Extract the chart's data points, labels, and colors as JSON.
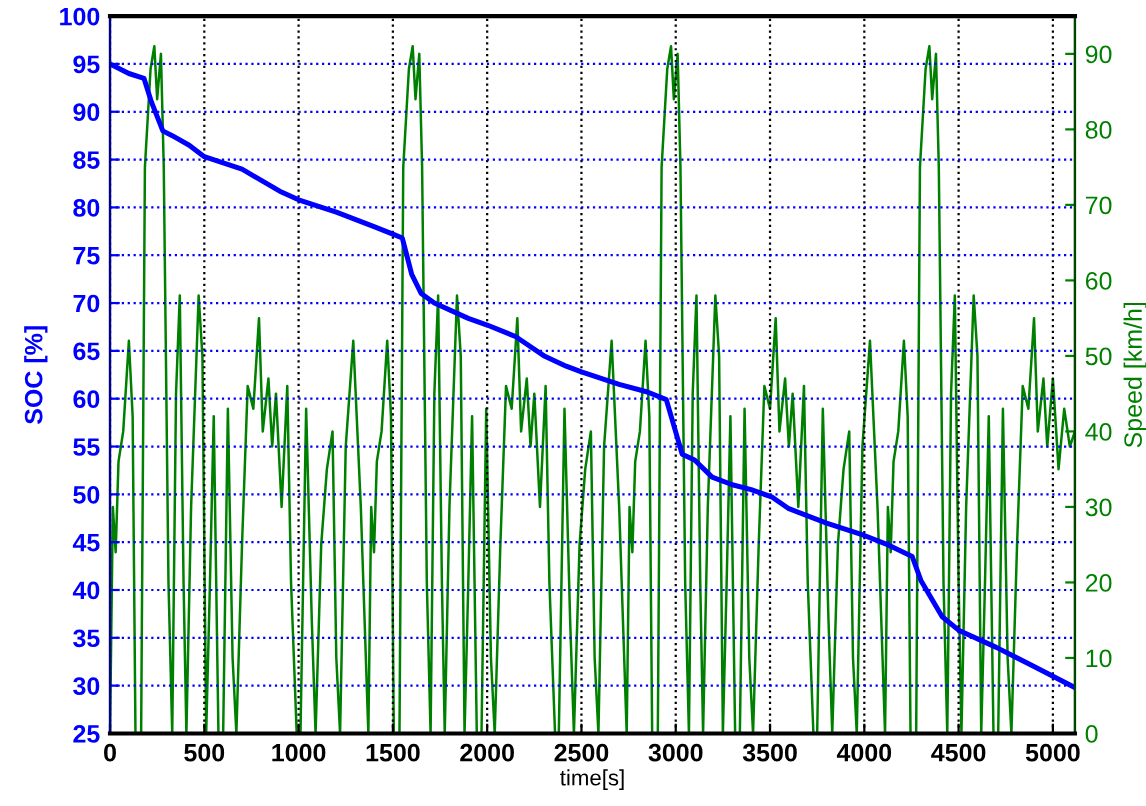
{
  "chart_data": {
    "type": "line",
    "xlabel": "time[s]",
    "ylabel": "SOC [%]",
    "y2label": "Speed [km/h]",
    "xlim": [
      0,
      5117
    ],
    "xticks": [
      0,
      500,
      1000,
      1500,
      2000,
      2500,
      3000,
      3500,
      4000,
      4500,
      5000
    ],
    "ylim": [
      25,
      100
    ],
    "yticks": [
      25,
      30,
      35,
      40,
      45,
      50,
      55,
      60,
      65,
      70,
      75,
      80,
      85,
      90,
      95,
      100
    ],
    "y2lim": [
      0,
      95
    ],
    "y2ticks": [
      0,
      10,
      20,
      30,
      40,
      50,
      60,
      70,
      80,
      90
    ],
    "grid": true,
    "marker": "none",
    "line_style": "solid",
    "series": [
      {
        "axis": "y2",
        "color": "#008000",
        "x": [
          0,
          15,
          30,
          45,
          70,
          100,
          120,
          135,
          165,
          185,
          215,
          235,
          250,
          270,
          285,
          310,
          330,
          350,
          370,
          390,
          405,
          430,
          470,
          490,
          510,
          530,
          550,
          575,
          600,
          625,
          650,
          670,
          700,
          730,
          760,
          790,
          810,
          840,
          860,
          880,
          910,
          940,
          960,
          990,
          1010,
          1040,
          1070,
          1090,
          1120,
          1150,
          1180,
          1200,
          1220,
          1250,
          1290,
          1330,
          1370,
          1385,
          1400,
          1415,
          1440,
          1470,
          1490,
          1505,
          1535,
          1555,
          1585,
          1605,
          1620,
          1640,
          1655,
          1680,
          1700,
          1720,
          1740,
          1760,
          1775,
          1800,
          1840,
          1860,
          1880,
          1900,
          1920,
          1945,
          1970,
          1995,
          2020,
          2040,
          2070,
          2100,
          2130,
          2160,
          2180,
          2210,
          2230,
          2250,
          2280,
          2310,
          2330,
          2360,
          2380,
          2410,
          2440,
          2460,
          2490,
          2520,
          2550,
          2570,
          2590,
          2620,
          2660,
          2700,
          2740,
          2755,
          2770,
          2785,
          2810,
          2840,
          2860,
          2875,
          2905,
          2925,
          2955,
          2975,
          2990,
          3010,
          3025,
          3050,
          3070,
          3090,
          3110,
          3130,
          3145,
          3170,
          3210,
          3230,
          3250,
          3270,
          3290,
          3315,
          3340,
          3365,
          3390,
          3410,
          3440,
          3470,
          3500,
          3530,
          3550,
          3580,
          3600,
          3620,
          3650,
          3680,
          3700,
          3730,
          3750,
          3780,
          3810,
          3830,
          3860,
          3890,
          3920,
          3940,
          3960,
          3990,
          4030,
          4070,
          4110,
          4125,
          4140,
          4155,
          4180,
          4210,
          4230,
          4245,
          4275,
          4295,
          4325,
          4345,
          4360,
          4380,
          4395,
          4420,
          4440,
          4460,
          4480,
          4500,
          4515,
          4540,
          4580,
          4600,
          4620,
          4640,
          4660,
          4685,
          4710,
          4735,
          4760,
          4780,
          4810,
          4840,
          4870,
          4900,
          4920,
          4950,
          4970,
          5000,
          5030,
          5060,
          5090,
          5117
        ],
        "values": [
          0,
          30,
          24,
          36,
          40,
          52,
          42,
          0,
          0,
          75,
          88,
          91,
          84,
          90,
          75,
          20,
          0,
          45,
          58,
          20,
          0,
          30,
          58,
          50,
          0,
          20,
          42,
          0,
          0,
          43,
          10,
          0,
          25,
          46,
          43,
          55,
          40,
          47,
          38,
          45,
          30,
          46,
          20,
          0,
          0,
          43,
          15,
          0,
          25,
          35,
          40,
          10,
          0,
          38,
          52,
          30,
          0,
          30,
          24,
          36,
          40,
          52,
          42,
          0,
          0,
          75,
          88,
          91,
          84,
          90,
          75,
          20,
          0,
          45,
          58,
          20,
          0,
          30,
          58,
          50,
          0,
          20,
          42,
          0,
          0,
          43,
          10,
          0,
          25,
          46,
          43,
          55,
          40,
          47,
          38,
          45,
          30,
          46,
          20,
          0,
          0,
          43,
          15,
          0,
          25,
          35,
          40,
          10,
          0,
          38,
          52,
          30,
          0,
          30,
          24,
          36,
          40,
          52,
          42,
          0,
          0,
          75,
          88,
          91,
          84,
          90,
          75,
          20,
          0,
          45,
          58,
          20,
          0,
          30,
          58,
          50,
          0,
          20,
          42,
          0,
          0,
          43,
          10,
          0,
          25,
          46,
          43,
          55,
          40,
          47,
          38,
          45,
          30,
          46,
          20,
          0,
          0,
          43,
          15,
          0,
          25,
          35,
          40,
          10,
          0,
          38,
          52,
          30,
          0,
          30,
          24,
          36,
          40,
          52,
          42,
          0,
          0,
          75,
          88,
          91,
          84,
          90,
          75,
          20,
          0,
          45,
          58,
          20,
          0,
          30,
          58,
          50,
          0,
          20,
          42,
          0,
          0,
          43,
          10,
          0,
          25,
          46,
          43,
          55,
          40,
          47,
          38,
          47,
          35,
          43,
          38,
          40
        ]
      },
      {
        "axis": "y",
        "color": "#0000ff",
        "x": [
          0,
          100,
          180,
          220,
          280,
          330,
          420,
          500,
          700,
          900,
          1000,
          1200,
          1400,
          1500,
          1550,
          1600,
          1650,
          1720,
          1900,
          2000,
          2150,
          2300,
          2419,
          2500,
          2700,
          2850,
          2950,
          3034,
          3100,
          3193,
          3300,
          3400,
          3512,
          3600,
          3800,
          4000,
          4116,
          4254,
          4300,
          4413,
          4500,
          4700,
          4900,
          5117
        ],
        "values": [
          95,
          94,
          93.5,
          91,
          88,
          87.5,
          86.5,
          85.3,
          84,
          81.7,
          80.8,
          79.5,
          78,
          77.2,
          76.8,
          73,
          71,
          70,
          68.4,
          67.7,
          66.5,
          64.5,
          63.4,
          62.8,
          61.5,
          60.7,
          59.9,
          54.2,
          53.6,
          51.8,
          51,
          50.5,
          49.7,
          48.5,
          47,
          45.7,
          44.8,
          43.5,
          41,
          37.2,
          35.8,
          34,
          32,
          29.8
        ]
      }
    ]
  }
}
